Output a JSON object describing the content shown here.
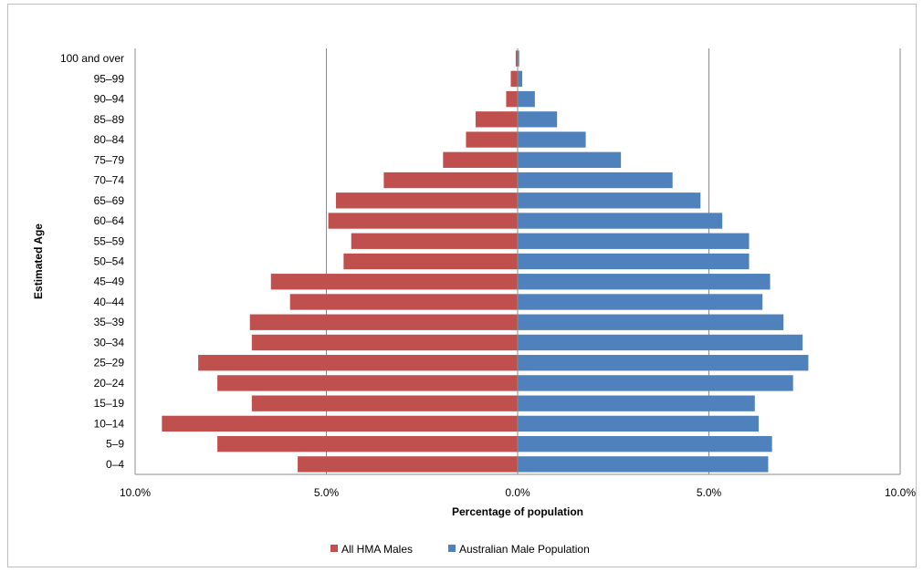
{
  "chart_data": {
    "type": "bar",
    "orientation": "horizontal",
    "title": "",
    "xlabel": "Percentage of population",
    "ylabel": "Estimated Age",
    "xlim": [
      -10,
      10
    ],
    "x_ticks": [
      {
        "value": -10,
        "label": "10.0%"
      },
      {
        "value": -5,
        "label": "5.0%"
      },
      {
        "value": 0,
        "label": "0.0%"
      },
      {
        "value": 5,
        "label": "5.0%"
      },
      {
        "value": 10,
        "label": "10.0%"
      }
    ],
    "grid": "vertical",
    "legend_position": "bottom",
    "categories": [
      "0–4",
      "5–9",
      "10–14",
      "15–19",
      "20–24",
      "25–29",
      "30–34",
      "35–39",
      "40–44",
      "45–49",
      "50–54",
      "55–59",
      "60–64",
      "65–69",
      "70–74",
      "75–79",
      "80–84",
      "85–89",
      "90–94",
      "95–99",
      "100 and over"
    ],
    "series": [
      {
        "name": "All HMA Males",
        "color": "#c0504d",
        "side": "left",
        "values": [
          5.75,
          7.85,
          9.3,
          6.95,
          7.85,
          8.35,
          6.95,
          7.0,
          5.95,
          6.45,
          4.55,
          4.35,
          4.95,
          4.75,
          3.5,
          1.95,
          1.35,
          1.1,
          0.3,
          0.18,
          0.05
        ]
      },
      {
        "name": "Australian Male Population",
        "color": "#4f81bd",
        "side": "right",
        "values": [
          6.55,
          6.65,
          6.3,
          6.2,
          7.2,
          7.6,
          7.45,
          6.95,
          6.4,
          6.6,
          6.05,
          6.05,
          5.35,
          4.78,
          4.05,
          2.7,
          1.78,
          1.03,
          0.45,
          0.12,
          0.04
        ]
      }
    ]
  }
}
